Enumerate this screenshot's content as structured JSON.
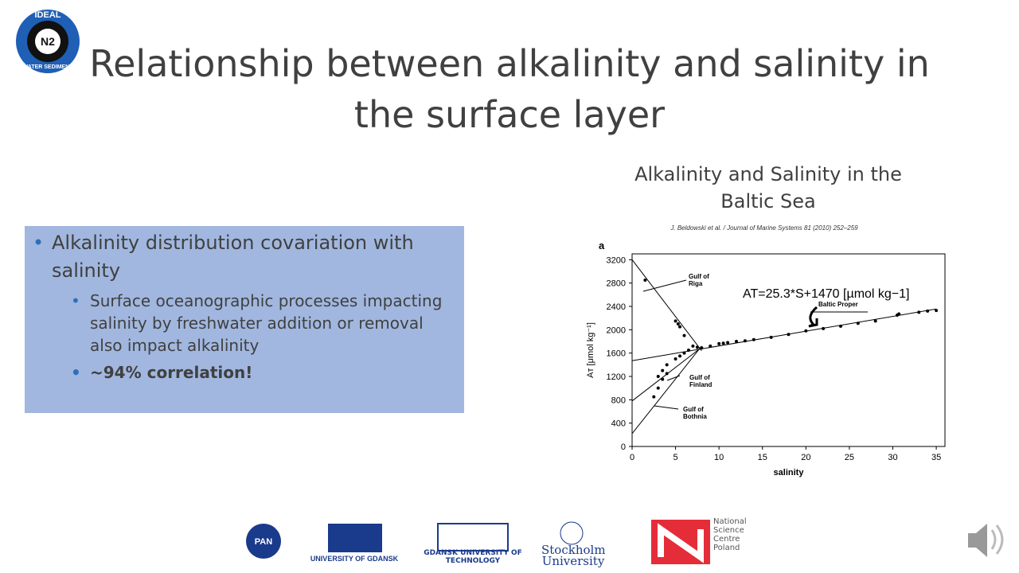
{
  "header": {
    "title": "Relationship between alkalinity and salinity in the surface layer",
    "logo": {
      "top": "IDEAL",
      "center": "N2",
      "bottom": "WATER SEDIMENT"
    }
  },
  "box": {
    "items": [
      {
        "text": "Alkalinity distribution covariation with salinity",
        "level": 1
      },
      {
        "text": "Surface oceanographic processes impacting salinity by freshwater addition or removal also impact alkalinity",
        "level": 2
      },
      {
        "text": "~94% correlation!",
        "level": 2,
        "bold": true
      }
    ]
  },
  "figure_caption": "Alkalinity and Salinity in the Baltic Sea",
  "chart_data": {
    "type": "scatter",
    "source": "J. Beldowski et al. / Journal of Marine Systems 81 (2010) 252–259",
    "panel": "a",
    "x_label": "salinity",
    "y_label": "Aт [μmol kg⁻¹]",
    "xlim": [
      0,
      36
    ],
    "ylim": [
      0,
      3300
    ],
    "xticks": [
      0,
      5,
      10,
      15,
      20,
      25,
      30,
      35
    ],
    "yticks": [
      0,
      400,
      800,
      1200,
      1600,
      2000,
      2400,
      2800,
      3200
    ],
    "color": "#000000",
    "x": [
      1.5,
      5,
      5.3,
      5.5,
      6,
      7,
      3,
      3.5,
      4,
      5,
      5.5,
      6,
      6.5,
      2.5,
      3,
      3.5,
      4,
      7.5,
      8,
      9,
      10,
      10.5,
      11,
      12,
      13,
      14,
      16,
      18,
      20,
      22,
      24,
      26,
      28,
      30.5,
      30.7,
      33,
      34,
      35
    ],
    "values": [
      2850,
      2150,
      2100,
      2050,
      1900,
      1720,
      1200,
      1300,
      1400,
      1500,
      1550,
      1600,
      1650,
      850,
      1000,
      1150,
      1250,
      1700,
      1690,
      1720,
      1760,
      1770,
      1780,
      1800,
      1810,
      1830,
      1870,
      1920,
      1980,
      2020,
      2060,
      2110,
      2150,
      2250,
      2270,
      2300,
      2320,
      2330
    ],
    "lines": [
      {
        "x": [
          0,
          8
        ],
        "values": [
          3200,
          1640
        ]
      },
      {
        "x": [
          0,
          8
        ],
        "values": [
          780,
          1700
        ]
      },
      {
        "x": [
          0,
          8
        ],
        "values": [
          220,
          1720
        ]
      },
      {
        "x": [
          0,
          35
        ],
        "values": [
          1470,
          2355
        ]
      }
    ],
    "annotations": [
      "Gulf of Riga",
      "Gulf of Finland",
      "Gulf of Bothnia",
      "Baltic Proper"
    ],
    "equation": "AT=25.3*S+1470 [µmol kg−1]"
  },
  "footer": {
    "logos": [
      "PAN",
      "UNIVERSITY OF GDANSK",
      "GDAŃSK UNIVERSITY OF TECHNOLOGY",
      "Stockholm University",
      "National Science Centre Poland"
    ]
  }
}
